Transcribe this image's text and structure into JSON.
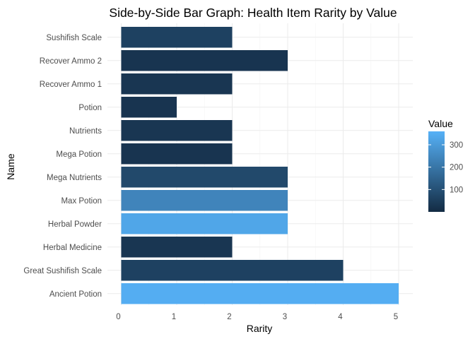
{
  "chart_data": {
    "type": "bar",
    "orientation": "horizontal",
    "title": "Side-by-Side Bar Graph: Health Item Rarity by Value",
    "xlabel": "Rarity",
    "ylabel": "Name",
    "xlim": [
      0,
      5
    ],
    "x_ticks": [
      "0",
      "1",
      "2",
      "3",
      "4",
      "5"
    ],
    "grid": true,
    "categories": [
      "Sushifish Scale",
      "Recover Ammo 2",
      "Recover Ammo 1",
      "Potion",
      "Nutrients",
      "Mega Potion",
      "Mega Nutrients",
      "Max Potion",
      "Herbal Powder",
      "Herbal Medicine",
      "Great Sushifish Scale",
      "Ancient Potion"
    ],
    "rarity": [
      2,
      3,
      2,
      1,
      2,
      2,
      3,
      3,
      3,
      2,
      4,
      5
    ],
    "fill_value": [
      60,
      25,
      30,
      25,
      30,
      25,
      80,
      240,
      330,
      30,
      60,
      350
    ],
    "legend": {
      "title": "Value",
      "placement": "right",
      "ticks": [
        "100",
        "200",
        "300"
      ],
      "range": [
        0,
        360
      ],
      "low_color": "#132B43",
      "high_color": "#56B1F7"
    }
  }
}
